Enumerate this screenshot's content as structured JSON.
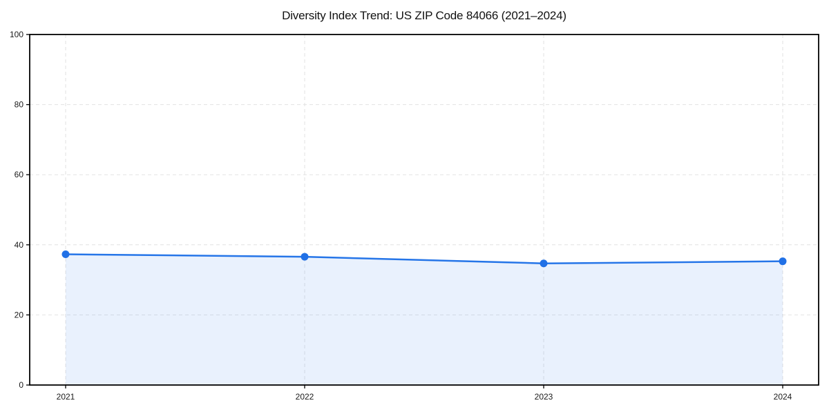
{
  "title": "Diversity Index Trend: US ZIP Code 84066 (2021–2024)",
  "colors": {
    "line": "#2575e8",
    "marker": "#2070e6",
    "fill": "rgba(37,117,232,0.10)",
    "grid": "#e2e2e2",
    "axis": "#000000",
    "tick_text": "#1a1a1a",
    "background": "#ffffff"
  },
  "chart_data": {
    "type": "area",
    "title": "Diversity Index Trend: US ZIP Code 84066 (2021–2024)",
    "x": [
      "2021",
      "2022",
      "2023",
      "2024"
    ],
    "values": [
      37.3,
      36.6,
      34.7,
      35.3
    ],
    "series_name": "Diversity Index",
    "xlabel": "",
    "ylabel": "",
    "ylim": [
      0,
      100
    ],
    "yticks": [
      0,
      20,
      40,
      60,
      80,
      100
    ],
    "xticks": [
      "2021",
      "2022",
      "2023",
      "2024"
    ],
    "grid": "dashed-both-axes",
    "legend": "none",
    "marker": "circle",
    "fill_to_zero": true
  }
}
